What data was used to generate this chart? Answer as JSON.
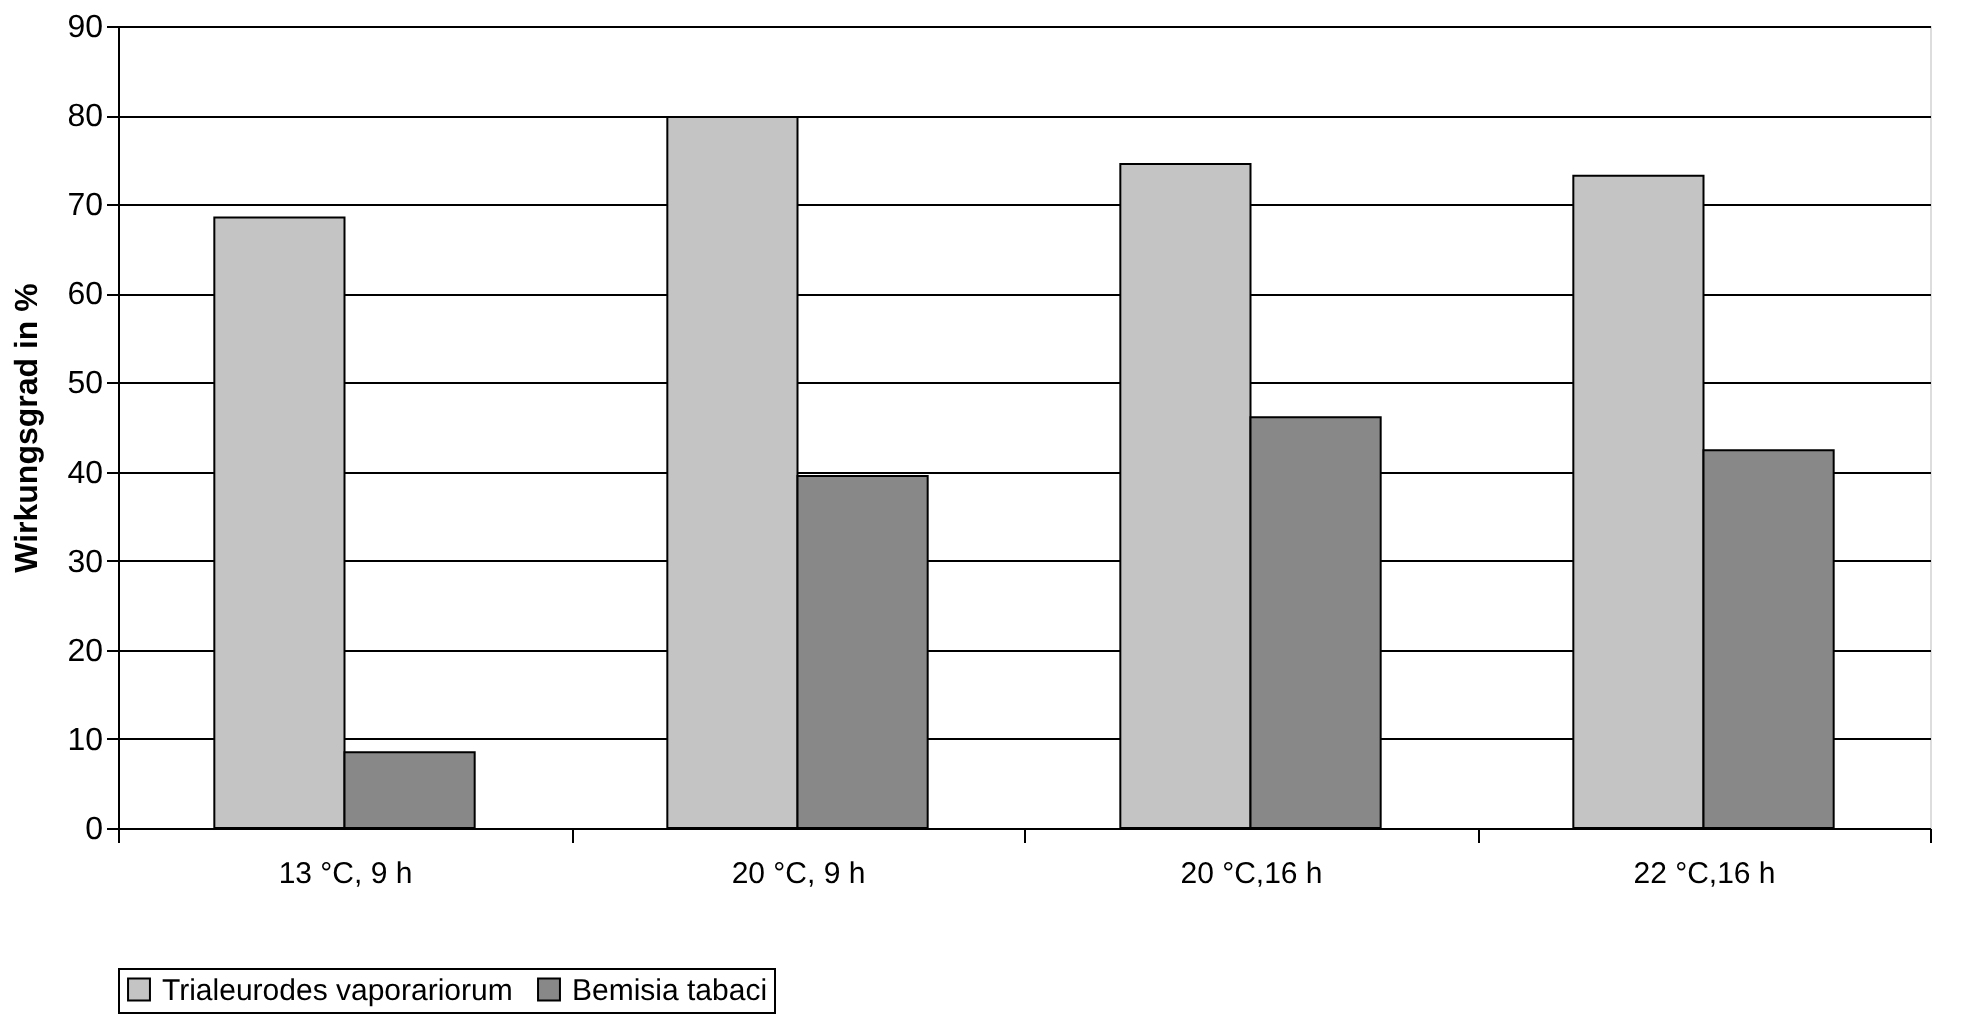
{
  "chart_data": {
    "type": "bar",
    "ylabel": "Wirkungsgrad in %",
    "categories": [
      "13 °C, 9 h",
      "20 °C, 9 h",
      "20 °C,16 h",
      "22 °C,16 h"
    ],
    "series": [
      {
        "name": "Trialeurodes vaporariorum",
        "color": "#c4c4c4",
        "values": [
          68.5,
          79.8,
          74.5,
          73.2
        ]
      },
      {
        "name": "Bemisia tabaci",
        "color": "#888888",
        "values": [
          8.5,
          39.5,
          46.1,
          42.4
        ]
      }
    ],
    "ylim": [
      0,
      90
    ],
    "yticks": [
      0,
      10,
      20,
      30,
      40,
      50,
      60,
      70,
      80,
      90
    ],
    "grid": "y",
    "legend": "bottom"
  }
}
